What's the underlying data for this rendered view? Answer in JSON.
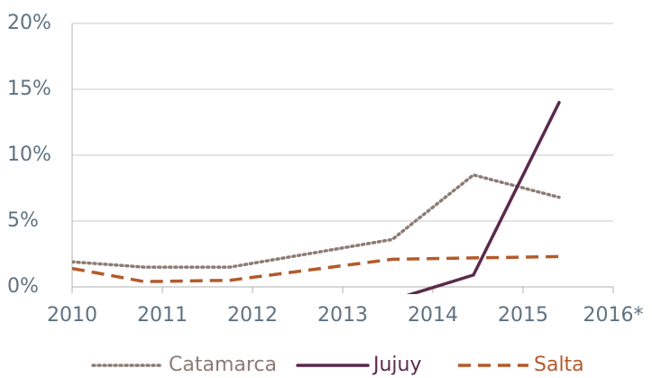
{
  "chart_data": {
    "type": "line",
    "x": [
      2010,
      2010.8,
      2011.75,
      2013.55,
      2014.45,
      2015.4
    ],
    "series": [
      {
        "name": "Catamarca",
        "color": "#8c7b74",
        "dash": "dotted",
        "values": [
          1.9,
          1.5,
          1.5,
          3.6,
          8.5,
          6.8
        ]
      },
      {
        "name": "Jujuy",
        "color": "#5b2a4c",
        "dash": "solid",
        "values": [
          null,
          null,
          null,
          -1,
          0.9,
          14.0
        ]
      },
      {
        "name": "Salta",
        "color": "#b35a2b",
        "dash": "dashed",
        "values": [
          1.4,
          0.4,
          0.5,
          2.1,
          2.2,
          2.3
        ]
      }
    ],
    "xlim": [
      2010,
      2016
    ],
    "xticks": [
      2010,
      2011,
      2012,
      2013,
      2014,
      2015,
      {
        "value": 2016,
        "label": "2016*"
      }
    ],
    "ylim": [
      0,
      20
    ],
    "yticks": [
      {
        "value": 0,
        "label": "0%"
      },
      {
        "value": 5,
        "label": "5%"
      },
      {
        "value": 10,
        "label": "10%"
      },
      {
        "value": 15,
        "label": "15%"
      },
      {
        "value": 20,
        "label": "20%"
      }
    ],
    "grid": true,
    "legend": "bottom"
  }
}
